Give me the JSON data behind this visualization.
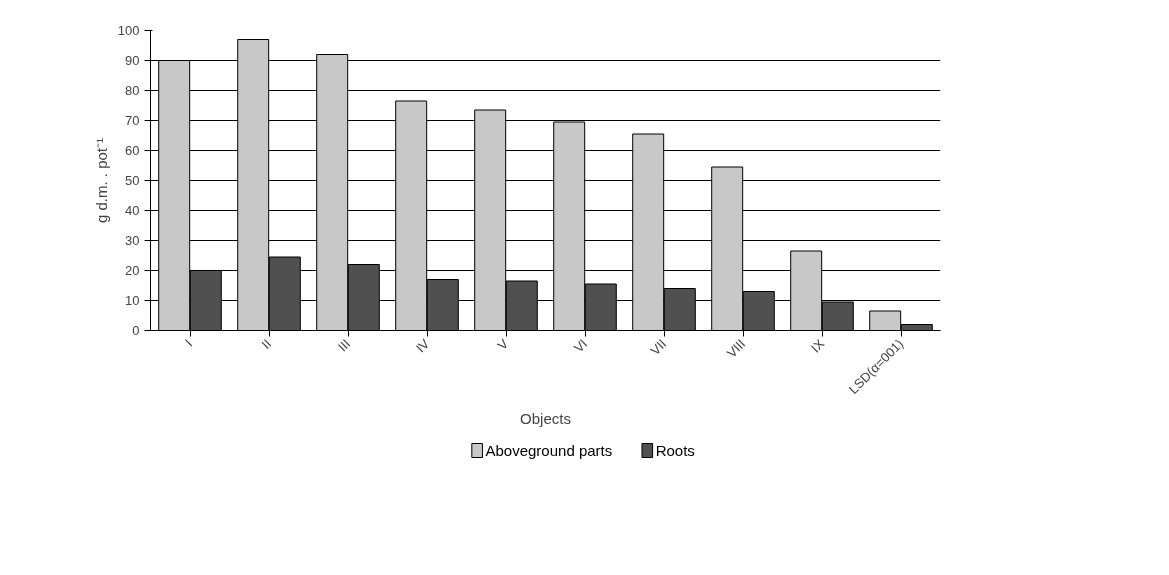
{
  "chart_data": {
    "type": "bar",
    "xlabel": "Objects",
    "ylabel": "g d.m. . pot⁻¹",
    "categories": [
      "I",
      "II",
      "III",
      "IV",
      "V",
      "VI",
      "VII",
      "VIII",
      "IX",
      "LSD(α=001)"
    ],
    "series": [
      {
        "name": "Aboveground parts",
        "color": "#c8c8c8",
        "values": [
          90,
          97,
          92,
          76.5,
          73.5,
          69.5,
          65.5,
          54.5,
          26.5,
          6.5
        ]
      },
      {
        "name": "Roots",
        "color": "#505050",
        "values": [
          20,
          24.5,
          22,
          17,
          16.5,
          15.5,
          14,
          13,
          9.5,
          2
        ]
      }
    ],
    "ylim": [
      0,
      100
    ],
    "yticks": [
      0,
      10,
      20,
      30,
      40,
      50,
      60,
      70,
      80,
      90,
      100
    ],
    "grid": "y",
    "legend": "bottom"
  }
}
